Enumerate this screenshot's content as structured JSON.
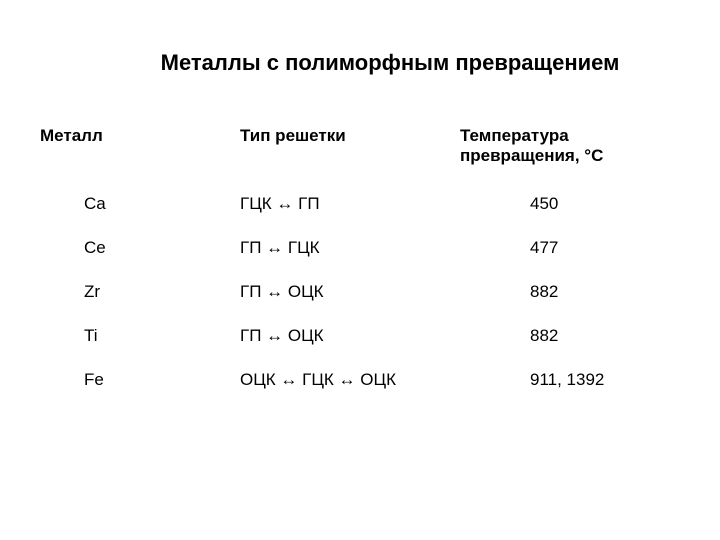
{
  "title": "Металлы с полиморфным превращением",
  "table": {
    "columns": [
      "Металл",
      "Тип решетки",
      "Температура\n     превращения, °С"
    ],
    "rows": [
      {
        "metal": "Ca",
        "type": "ГЦК ↔  ГП",
        "temp": "450"
      },
      {
        "metal": "Ce",
        "type": "ГП ↔ ГЦК",
        "temp": "477"
      },
      {
        "metal": "Zr",
        "type": "ГП ↔ ОЦК",
        "temp": "882"
      },
      {
        "metal": "Ti",
        "type": "ГП ↔ ОЦК",
        "temp": "882"
      },
      {
        "metal": "Fe",
        "type": "ОЦК ↔ ГЦК ↔ ОЦК",
        "temp": "911, 1392"
      }
    ],
    "title_fontsize": 22,
    "header_fontsize": 17,
    "body_fontsize": 17,
    "background_color": "#ffffff",
    "text_color": "#000000"
  }
}
